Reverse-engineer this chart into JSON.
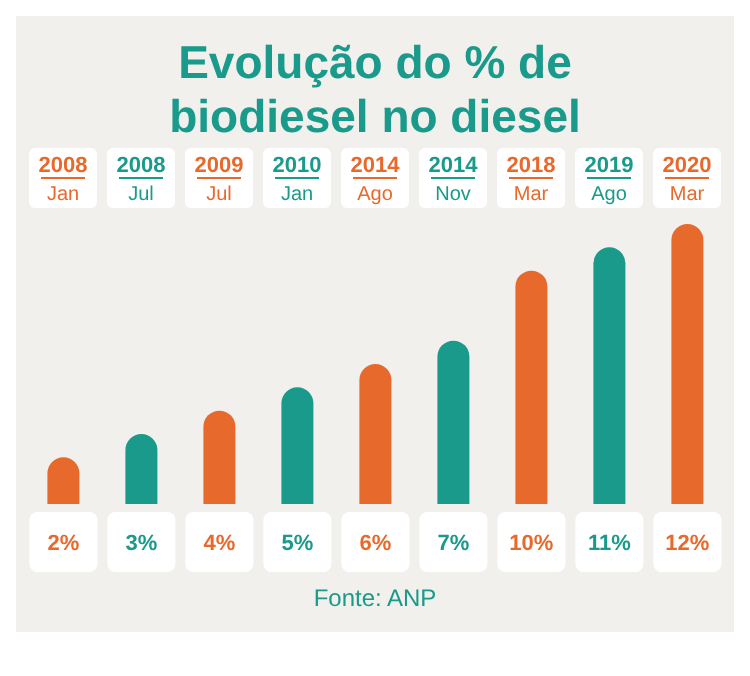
{
  "chart_data": {
    "type": "bar",
    "title": "Evolução do % de biodiesel no diesel",
    "categories": [
      "2008 Jan",
      "2008 Jul",
      "2009 Jul",
      "2010 Jan",
      "2014 Ago",
      "2014 Nov",
      "2018 Mar",
      "2019 Ago",
      "2020 Mar"
    ],
    "values": [
      2,
      3,
      4,
      5,
      6,
      7,
      10,
      11,
      12
    ],
    "colors": [
      "#e8692c",
      "#1a9a8a",
      "#e8692c",
      "#1a9a8a",
      "#e8692c",
      "#1a9a8a",
      "#e8692c",
      "#1a9a8a",
      "#e8692c"
    ],
    "value_labels": [
      "2%",
      "3%",
      "4%",
      "5%",
      "6%",
      "7%",
      "10%",
      "11%",
      "12%"
    ],
    "annotations": [
      "Fonte: ANP"
    ]
  }
}
